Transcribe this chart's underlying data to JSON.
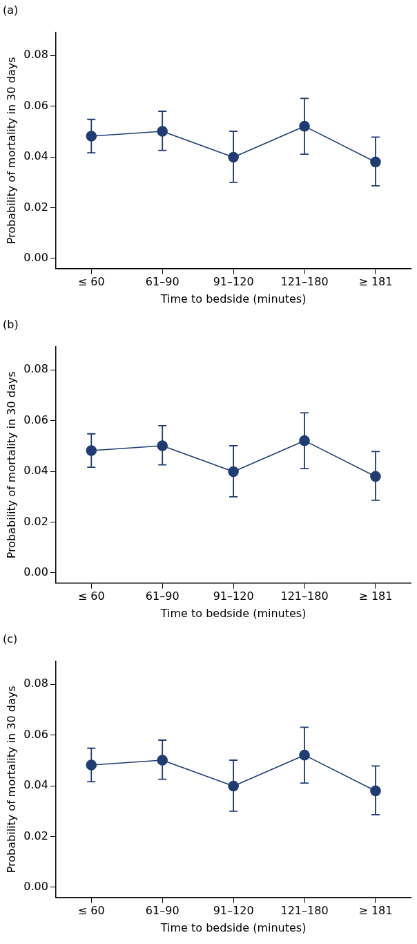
{
  "chart_data": [
    {
      "type": "line",
      "title": "(a)",
      "xlabel": "Time to bedside (minutes)",
      "ylabel": "Probability of mortality in 30 days",
      "categories": [
        "≤ 60",
        "61–90",
        "91–120",
        "121–180",
        "≥ 181"
      ],
      "values": [
        0.0482,
        0.0501,
        0.0399,
        0.0521,
        0.038
      ],
      "errors": [
        [
          0.0416,
          0.0548
        ],
        [
          0.0426,
          0.058
        ],
        [
          0.03,
          0.0501
        ],
        [
          0.0411,
          0.0631
        ],
        [
          0.0286,
          0.0478
        ]
      ],
      "color": "#1f3c73",
      "marker": "circle",
      "grid": false,
      "legend": false,
      "ylim": [
        -0.004,
        0.089
      ],
      "yticks": [
        {
          "value": 0,
          "label": "0.00"
        },
        {
          "value": 0.02,
          "label": "0.02"
        },
        {
          "value": 0.04,
          "label": "0.04"
        },
        {
          "value": 0.06,
          "label": "0.06"
        },
        {
          "value": 0.08,
          "label": "0.08"
        }
      ]
    },
    {
      "type": "line",
      "title": "(b)",
      "xlabel": "Time to bedside (minutes)",
      "ylabel": "Probability of mortality in 30 days",
      "categories": [
        "≤ 60",
        "61–90",
        "91–120",
        "121–180",
        "≥ 181"
      ],
      "values": [
        0.0482,
        0.0501,
        0.0399,
        0.0521,
        0.038
      ],
      "errors": [
        [
          0.0416,
          0.0548
        ],
        [
          0.0426,
          0.058
        ],
        [
          0.03,
          0.0501
        ],
        [
          0.0411,
          0.0631
        ],
        [
          0.0286,
          0.0478
        ]
      ],
      "color": "#1f3c73",
      "marker": "circle",
      "grid": false,
      "legend": false,
      "ylim": [
        -0.004,
        0.089
      ],
      "yticks": [
        {
          "value": 0,
          "label": "0.00"
        },
        {
          "value": 0.02,
          "label": "0.02"
        },
        {
          "value": 0.04,
          "label": "0.04"
        },
        {
          "value": 0.06,
          "label": "0.06"
        },
        {
          "value": 0.08,
          "label": "0.08"
        }
      ]
    },
    {
      "type": "line",
      "title": "(c)",
      "xlabel": "Time to bedside (minutes)",
      "ylabel": "Probability of mortality in 30 days",
      "categories": [
        "≤ 60",
        "61–90",
        "91–120",
        "121–180",
        "≥ 181"
      ],
      "values": [
        0.0482,
        0.0501,
        0.0399,
        0.0521,
        0.038
      ],
      "errors": [
        [
          0.0416,
          0.0548
        ],
        [
          0.0426,
          0.058
        ],
        [
          0.03,
          0.0501
        ],
        [
          0.0411,
          0.0631
        ],
        [
          0.0286,
          0.0478
        ]
      ],
      "color": "#1f3c73",
      "marker": "circle",
      "grid": false,
      "legend": false,
      "ylim": [
        -0.004,
        0.089
      ],
      "yticks": [
        {
          "value": 0,
          "label": "0.00"
        },
        {
          "value": 0.02,
          "label": "0.02"
        },
        {
          "value": 0.04,
          "label": "0.04"
        },
        {
          "value": 0.06,
          "label": "0.06"
        },
        {
          "value": 0.08,
          "label": "0.08"
        }
      ]
    }
  ]
}
